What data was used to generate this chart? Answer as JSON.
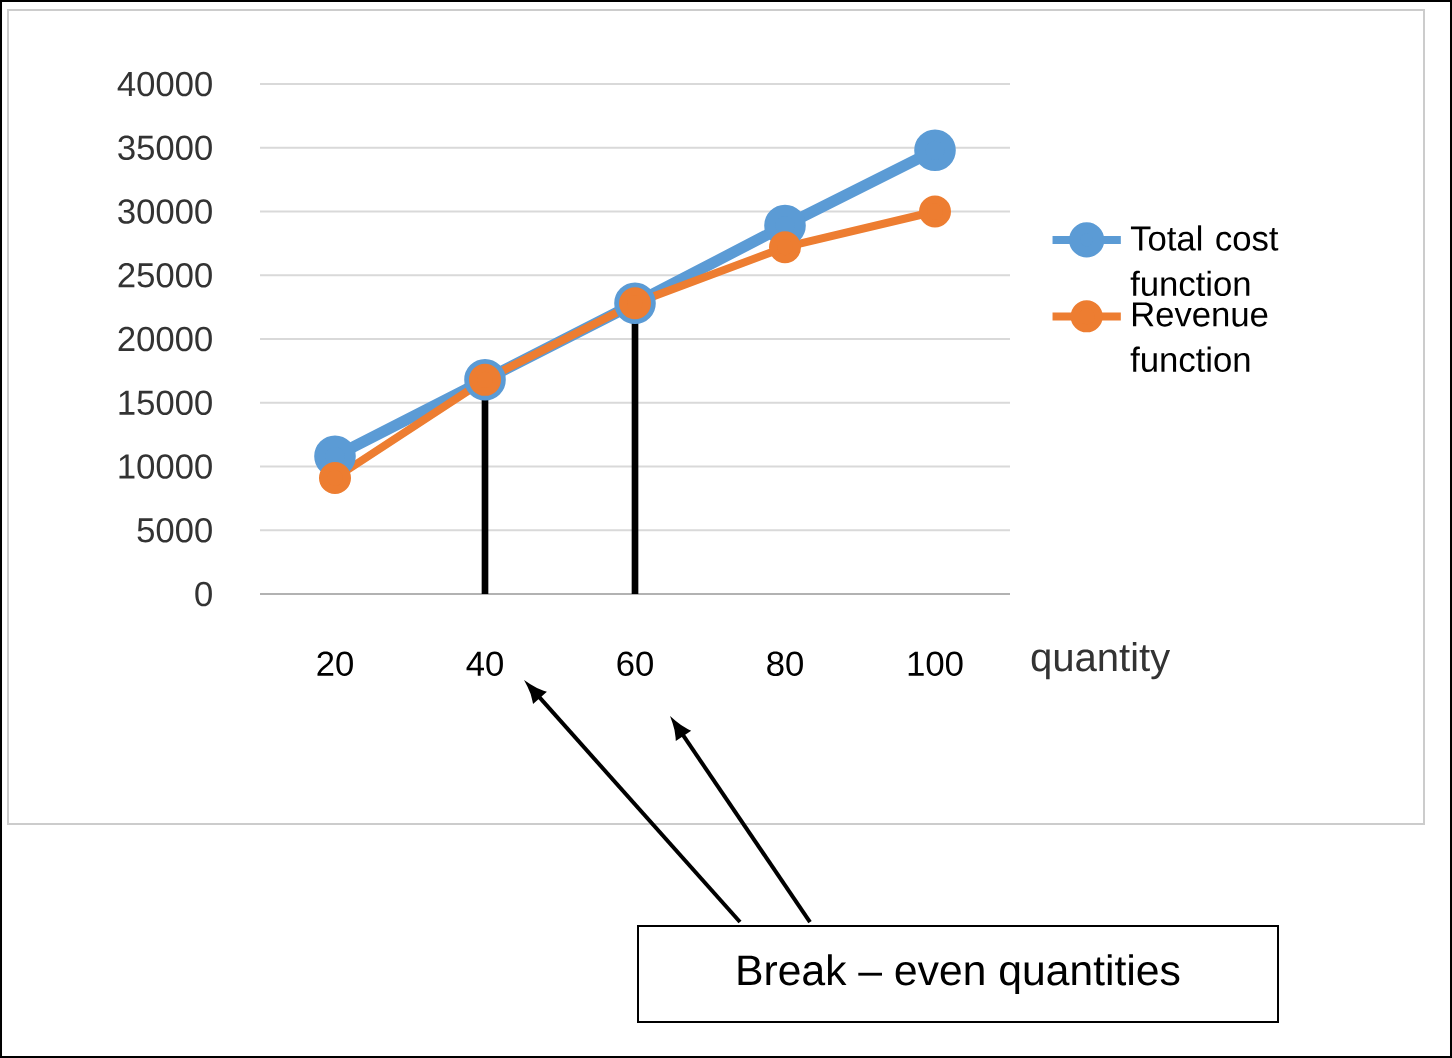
{
  "chart_data": {
    "type": "line",
    "xlabel": "quantity",
    "x": [
      20,
      40,
      60,
      80,
      100
    ],
    "xlim": [
      10,
      110
    ],
    "xticks": [
      20,
      40,
      60,
      80,
      100
    ],
    "ylim": [
      0,
      40000
    ],
    "yticks": [
      0,
      5000,
      10000,
      15000,
      20000,
      25000,
      30000,
      35000,
      40000
    ],
    "grid": "y",
    "legend": "right",
    "marker": "circle",
    "series": [
      {
        "name": "Total cost function",
        "color": "#5b9bd5",
        "values": [
          10800,
          16800,
          22800,
          28900,
          34800
        ]
      },
      {
        "name": "Revenue function",
        "color": "#ed7d31",
        "values": [
          9100,
          16800,
          22800,
          27200,
          30000
        ]
      }
    ],
    "ref_lines": [
      {
        "axis": "x",
        "value": 40,
        "color": "#000000"
      },
      {
        "axis": "x",
        "value": 60,
        "color": "#000000"
      }
    ],
    "annotations": [
      "Break – even quantities"
    ]
  }
}
